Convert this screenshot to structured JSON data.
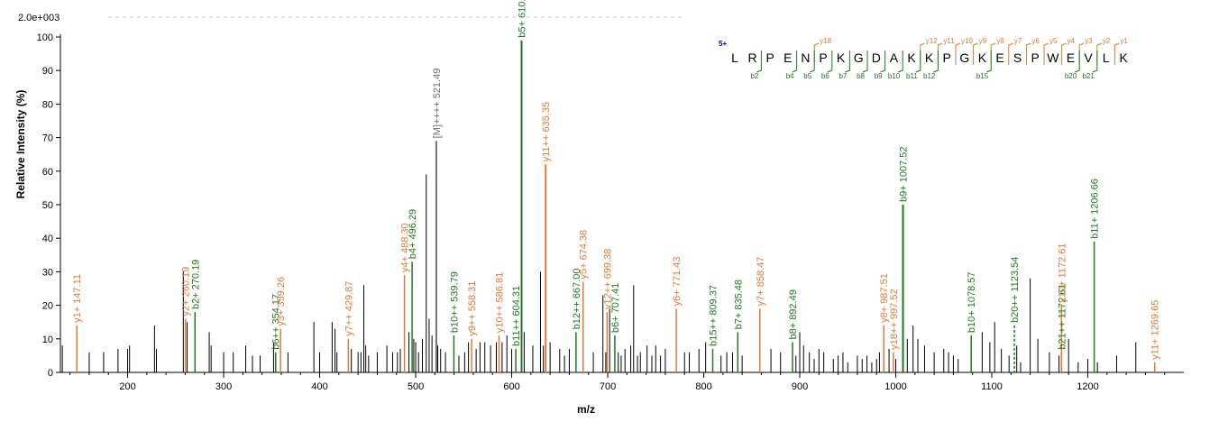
{
  "colors": {
    "b": "#1f7a1f",
    "y": "#e07b39",
    "m": "#707070",
    "noise": "#000000",
    "charge": "#0000cc"
  },
  "chart_data": {
    "type": "bar",
    "title": "",
    "scale_label": "2.0e+003",
    "xlabel": "m/z",
    "ylabel": "Relative   Intensity (%)",
    "xlim": [
      130,
      1300
    ],
    "ylim": [
      0,
      100
    ],
    "xticks": [
      200,
      300,
      400,
      500,
      600,
      700,
      800,
      900,
      1000,
      1100,
      1200
    ],
    "yticks": [
      0,
      10,
      20,
      30,
      40,
      50,
      60,
      70,
      80,
      90,
      100
    ],
    "annotated_peaks": [
      {
        "mz": 147.11,
        "intensity": 14,
        "label": "y1+ 147.11",
        "ion": "y"
      },
      {
        "mz": 260.19,
        "intensity": 16,
        "label": "y2+ 260.19",
        "ion": "y"
      },
      {
        "mz": 270.19,
        "intensity": 18,
        "label": "b2+ 270.19",
        "ion": "b"
      },
      {
        "mz": 354.17,
        "intensity": 6,
        "label": "b6++ 354.17",
        "ion": "b"
      },
      {
        "mz": 359.26,
        "intensity": 13,
        "label": "y3+ 359.26",
        "ion": "y"
      },
      {
        "mz": 429.87,
        "intensity": 10,
        "label": "y7++ 429.87",
        "ion": "y"
      },
      {
        "mz": 488.3,
        "intensity": 29,
        "label": "y4+ 488.30",
        "ion": "y"
      },
      {
        "mz": 496.29,
        "intensity": 33,
        "label": "b4+ 496.29",
        "ion": "b"
      },
      {
        "mz": 521.49,
        "intensity": 69,
        "label": "[M]++++ 521.49",
        "ion": "m"
      },
      {
        "mz": 539.79,
        "intensity": 11,
        "label": "b10++ 539.79",
        "ion": "b"
      },
      {
        "mz": 558.31,
        "intensity": 10,
        "label": "y9++ 558.31",
        "ion": "y"
      },
      {
        "mz": 586.81,
        "intensity": 11,
        "label": "y10++ 586.81",
        "ion": "y"
      },
      {
        "mz": 604.31,
        "intensity": 7,
        "label": "b11++ 604.31",
        "ion": "b"
      },
      {
        "mz": 610.3,
        "intensity": 99,
        "label": "b5+ 610.3",
        "ion": "b"
      },
      {
        "mz": 635.35,
        "intensity": 62,
        "label": "y11++ 635.35",
        "ion": "y"
      },
      {
        "mz": 667.0,
        "intensity": 12,
        "label": "b12++ 667.00",
        "ion": "b"
      },
      {
        "mz": 674.38,
        "intensity": 27,
        "label": "y5+ 674.38",
        "ion": "y"
      },
      {
        "mz": 699.38,
        "intensity": 18,
        "label": "y12++ 699.38",
        "ion": "y"
      },
      {
        "mz": 707.41,
        "intensity": 11,
        "label": "b6+ 707.41",
        "ion": "b"
      },
      {
        "mz": 771.43,
        "intensity": 19,
        "label": "y6+ 771.43",
        "ion": "y"
      },
      {
        "mz": 809.37,
        "intensity": 7,
        "label": "b15++ 809.37",
        "ion": "b"
      },
      {
        "mz": 835.48,
        "intensity": 12,
        "label": "b7+ 835.48",
        "ion": "b"
      },
      {
        "mz": 858.47,
        "intensity": 19,
        "label": "y7+ 858.47",
        "ion": "y"
      },
      {
        "mz": 892.49,
        "intensity": 9,
        "label": "b8+ 892.49",
        "ion": "b"
      },
      {
        "mz": 987.51,
        "intensity": 14,
        "label": "y8+ 987.51",
        "ion": "y"
      },
      {
        "mz": 997.52,
        "intensity": 6,
        "label": "y18++ 997.52",
        "ion": "y"
      },
      {
        "mz": 1007.52,
        "intensity": 50,
        "label": "b9+ 1007.52",
        "ion": "b"
      },
      {
        "mz": 1078.57,
        "intensity": 11,
        "label": "b10+ 1078.57",
        "ion": "b"
      },
      {
        "mz": 1123.54,
        "intensity": 14,
        "label": "b20++ 1123.54",
        "ion": "b"
      },
      {
        "mz": 1172.61,
        "intensity": 6,
        "label": "b21++ 1172.61",
        "ion": "b"
      },
      {
        "mz": 1172.61,
        "intensity": 20,
        "label": "y10+ 1172.61",
        "ion": "y"
      },
      {
        "mz": 1206.66,
        "intensity": 39,
        "label": "b11+ 1206.66",
        "ion": "b"
      },
      {
        "mz": 1269.65,
        "intensity": 3,
        "label": "y11+ 1269.65",
        "ion": "y"
      }
    ],
    "unlabeled_peaks": [
      [
        132,
        8
      ],
      [
        160,
        6
      ],
      [
        175,
        6
      ],
      [
        190,
        7
      ],
      [
        200,
        7
      ],
      [
        202,
        8
      ],
      [
        228,
        14
      ],
      [
        230,
        7
      ],
      [
        258,
        30
      ],
      [
        262,
        15
      ],
      [
        285,
        12
      ],
      [
        287,
        8
      ],
      [
        300,
        6
      ],
      [
        310,
        6
      ],
      [
        323,
        8
      ],
      [
        330,
        5
      ],
      [
        338,
        5
      ],
      [
        352,
        9
      ],
      [
        367,
        6
      ],
      [
        394,
        15
      ],
      [
        400,
        6
      ],
      [
        413,
        15
      ],
      [
        416,
        13
      ],
      [
        418,
        6
      ],
      [
        433,
        7
      ],
      [
        440,
        6
      ],
      [
        443,
        6
      ],
      [
        446,
        26
      ],
      [
        448,
        8
      ],
      [
        451,
        5
      ],
      [
        460,
        6
      ],
      [
        470,
        8
      ],
      [
        476,
        6
      ],
      [
        481,
        6
      ],
      [
        484,
        7
      ],
      [
        493,
        12
      ],
      [
        498,
        10
      ],
      [
        500,
        9
      ],
      [
        503,
        6
      ],
      [
        507,
        10
      ],
      [
        511,
        59
      ],
      [
        514,
        16
      ],
      [
        517,
        11
      ],
      [
        523,
        8
      ],
      [
        526,
        7
      ],
      [
        531,
        6
      ],
      [
        545,
        5
      ],
      [
        551,
        6
      ],
      [
        555,
        9
      ],
      [
        563,
        7
      ],
      [
        567,
        9
      ],
      [
        572,
        9
      ],
      [
        578,
        8
      ],
      [
        584,
        9
      ],
      [
        590,
        9
      ],
      [
        595,
        11
      ],
      [
        600,
        7
      ],
      [
        613,
        12
      ],
      [
        622,
        8
      ],
      [
        630,
        30
      ],
      [
        633,
        8
      ],
      [
        640,
        9
      ],
      [
        650,
        7
      ],
      [
        655,
        5
      ],
      [
        660,
        7
      ],
      [
        685,
        6
      ],
      [
        695,
        23
      ],
      [
        698,
        6
      ],
      [
        702,
        19
      ],
      [
        711,
        6
      ],
      [
        714,
        5
      ],
      [
        718,
        7
      ],
      [
        724,
        8
      ],
      [
        727,
        26
      ],
      [
        731,
        5
      ],
      [
        734,
        6
      ],
      [
        741,
        8
      ],
      [
        746,
        5
      ],
      [
        750,
        8
      ],
      [
        755,
        5
      ],
      [
        760,
        7
      ],
      [
        780,
        6
      ],
      [
        785,
        6
      ],
      [
        795,
        7
      ],
      [
        802,
        9
      ],
      [
        818,
        5
      ],
      [
        824,
        6
      ],
      [
        830,
        6
      ],
      [
        840,
        5
      ],
      [
        870,
        7
      ],
      [
        880,
        6
      ],
      [
        896,
        5
      ],
      [
        900,
        12
      ],
      [
        904,
        8
      ],
      [
        910,
        6
      ],
      [
        915,
        4
      ],
      [
        920,
        7
      ],
      [
        925,
        6
      ],
      [
        935,
        4
      ],
      [
        940,
        5
      ],
      [
        945,
        6
      ],
      [
        950,
        3
      ],
      [
        960,
        5
      ],
      [
        965,
        4
      ],
      [
        970,
        5
      ],
      [
        975,
        3
      ],
      [
        980,
        4
      ],
      [
        983,
        6
      ],
      [
        993,
        7
      ],
      [
        1000,
        4
      ],
      [
        1012,
        10
      ],
      [
        1018,
        14
      ],
      [
        1023,
        10
      ],
      [
        1030,
        8
      ],
      [
        1040,
        6
      ],
      [
        1050,
        7
      ],
      [
        1055,
        6
      ],
      [
        1060,
        5
      ],
      [
        1065,
        4
      ],
      [
        1090,
        12
      ],
      [
        1098,
        9
      ],
      [
        1103,
        15
      ],
      [
        1110,
        7
      ],
      [
        1118,
        5
      ],
      [
        1126,
        8
      ],
      [
        1130,
        3
      ],
      [
        1140,
        28
      ],
      [
        1148,
        10
      ],
      [
        1160,
        6
      ],
      [
        1170,
        5
      ],
      [
        1180,
        10
      ],
      [
        1190,
        3
      ],
      [
        1200,
        4
      ],
      [
        1210,
        3
      ],
      [
        1230,
        5
      ],
      [
        1250,
        9
      ]
    ]
  },
  "sequence": {
    "charge": "5+",
    "residues": [
      "L",
      "R",
      "P",
      "E",
      "N",
      "P",
      "K",
      "G",
      "D",
      "A",
      "K",
      "K",
      "P",
      "G",
      "K",
      "E",
      "S",
      "P",
      "W",
      "E",
      "V",
      "L",
      "K"
    ],
    "y_ions": [
      {
        "after": 5,
        "label": "y18"
      },
      {
        "after": 11,
        "label": "y12"
      },
      {
        "after": 12,
        "label": "y11"
      },
      {
        "after": 13,
        "label": "y10"
      },
      {
        "after": 14,
        "label": "y9"
      },
      {
        "after": 15,
        "label": "y8"
      },
      {
        "after": 16,
        "label": "y7"
      },
      {
        "after": 17,
        "label": "y6"
      },
      {
        "after": 18,
        "label": "y5"
      },
      {
        "after": 19,
        "label": "y4"
      },
      {
        "after": 20,
        "label": "y3"
      },
      {
        "after": 21,
        "label": "y2"
      },
      {
        "after": 22,
        "label": "y1"
      }
    ],
    "b_ions": [
      {
        "after": 2,
        "label": "b2"
      },
      {
        "after": 4,
        "label": "b4"
      },
      {
        "after": 5,
        "label": "b5"
      },
      {
        "after": 6,
        "label": "b6"
      },
      {
        "after": 7,
        "label": "b7"
      },
      {
        "after": 8,
        "label": "b8"
      },
      {
        "after": 9,
        "label": "b9"
      },
      {
        "after": 10,
        "label": "b10"
      },
      {
        "after": 11,
        "label": "b11"
      },
      {
        "after": 12,
        "label": "b12"
      },
      {
        "after": 15,
        "label": "b15"
      },
      {
        "after": 20,
        "label": "b20"
      },
      {
        "after": 21,
        "label": "b21"
      }
    ]
  }
}
